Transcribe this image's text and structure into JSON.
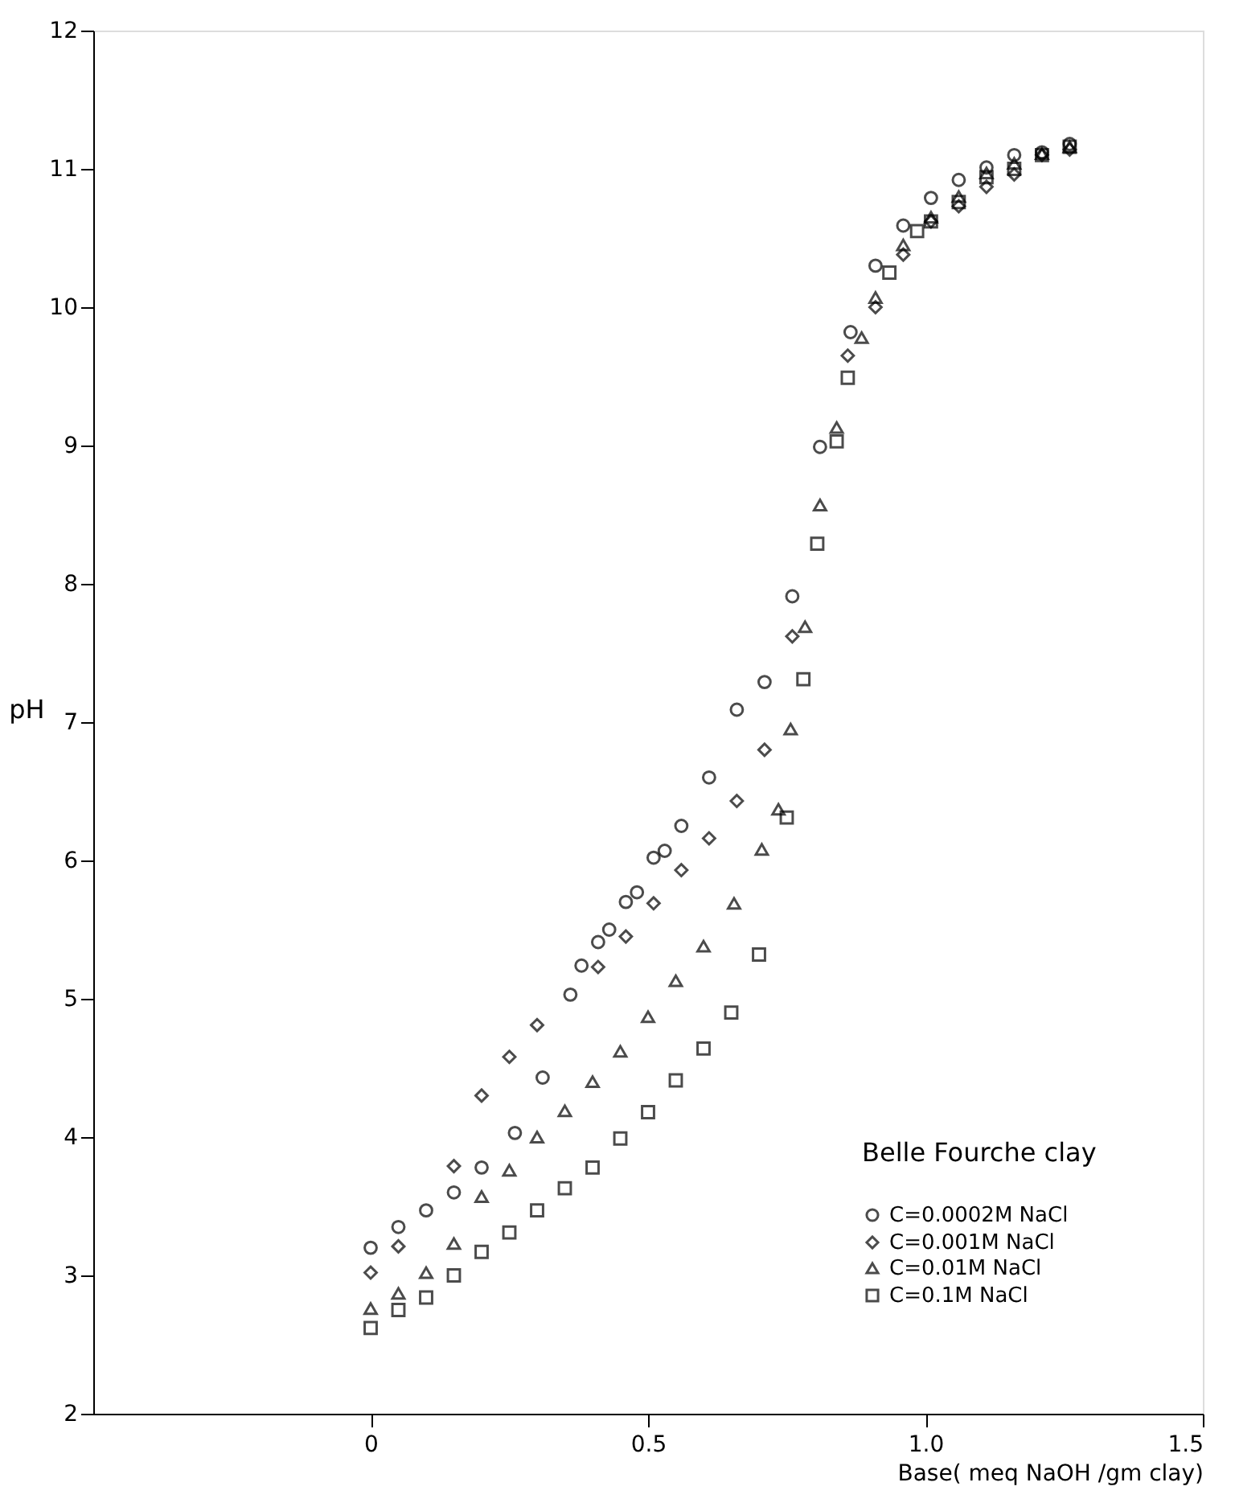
{
  "chart_data": {
    "type": "scatter",
    "xlabel": "Base( meq  NaOH /gm clay)",
    "ylabel": "pH",
    "legend_title": "Belle Fourche clay",
    "legend": "bottom right",
    "grid": false,
    "xlim": [
      -0.5,
      1.5
    ],
    "xticks": [
      0,
      0.5,
      {
        "value": 1,
        "label": "1.0"
      },
      1.5
    ],
    "ylim": [
      2,
      12
    ],
    "yticks": [
      2,
      3,
      4,
      5,
      6,
      7,
      8,
      9,
      10,
      11,
      12
    ],
    "series": [
      {
        "name": "C=0.0002M NaCl",
        "color": "#000000",
        "marker": "circle",
        "x": [
          0,
          0.05,
          0.1,
          0.15,
          0.2,
          0.26,
          0.31,
          0.36,
          0.38,
          0.41,
          0.43,
          0.46,
          0.48,
          0.51,
          0.53,
          0.56,
          0.61,
          0.66,
          0.71,
          0.76,
          0.81,
          0.865,
          0.91,
          0.96,
          1.01,
          1.06,
          1.11,
          1.16,
          1.21,
          1.26
        ],
        "values": [
          3.2,
          3.35,
          3.47,
          3.6,
          3.78,
          4.03,
          4.43,
          5.03,
          5.24,
          5.41,
          5.5,
          5.7,
          5.77,
          6.02,
          6.07,
          6.25,
          6.6,
          7.09,
          7.29,
          7.91,
          8.99,
          9.82,
          10.3,
          10.59,
          10.79,
          10.92,
          11.01,
          11.1,
          11.12,
          11.18
        ]
      },
      {
        "name": "C=0.001M NaCl",
        "color": "#000000",
        "marker": "diamond",
        "x": [
          0,
          0.05,
          0.15,
          0.2,
          0.25,
          0.3,
          0.41,
          0.46,
          0.51,
          0.56,
          0.61,
          0.66,
          0.71,
          0.76,
          0.86,
          0.91,
          0.96,
          1.01,
          1.06,
          1.11,
          1.16,
          1.21,
          1.26
        ],
        "values": [
          3.02,
          3.21,
          3.79,
          4.3,
          4.58,
          4.81,
          5.23,
          5.45,
          5.69,
          5.93,
          6.16,
          6.43,
          6.8,
          7.62,
          9.65,
          10.0,
          10.38,
          10.62,
          10.73,
          10.87,
          10.96,
          11.1,
          11.14
        ]
      },
      {
        "name": "C=0.01M NaCl",
        "color": "#000000",
        "marker": "triangle",
        "x": [
          0,
          0.05,
          0.1,
          0.15,
          0.2,
          0.25,
          0.3,
          0.35,
          0.4,
          0.45,
          0.5,
          0.55,
          0.6,
          0.655,
          0.705,
          0.735,
          0.757,
          0.783,
          0.81,
          0.84,
          0.885,
          0.91,
          0.96,
          1.01,
          1.06,
          1.11,
          1.16,
          1.21,
          1.26
        ],
        "values": [
          2.76,
          2.87,
          3.02,
          3.23,
          3.57,
          3.76,
          4.0,
          4.19,
          4.4,
          4.62,
          4.87,
          5.13,
          5.38,
          5.69,
          6.08,
          6.37,
          6.95,
          7.69,
          8.57,
          9.13,
          9.78,
          10.07,
          10.45,
          10.65,
          10.8,
          10.97,
          11.04,
          11.11,
          11.16
        ]
      },
      {
        "name": "C=0.1M NaCl",
        "color": "#000000",
        "marker": "square",
        "x": [
          0,
          0.05,
          0.1,
          0.15,
          0.2,
          0.25,
          0.3,
          0.35,
          0.4,
          0.45,
          0.5,
          0.55,
          0.6,
          0.65,
          0.7,
          0.75,
          0.78,
          0.805,
          0.84,
          0.86,
          0.935,
          0.985,
          1.01,
          1.06,
          1.11,
          1.16,
          1.21,
          1.26
        ],
        "values": [
          2.62,
          2.75,
          2.84,
          3.0,
          3.17,
          3.31,
          3.47,
          3.63,
          3.78,
          3.99,
          4.18,
          4.41,
          4.64,
          4.9,
          5.32,
          6.31,
          7.31,
          8.29,
          9.03,
          9.49,
          10.25,
          10.55,
          10.62,
          10.76,
          10.94,
          11.0,
          11.1,
          11.16
        ]
      }
    ]
  }
}
